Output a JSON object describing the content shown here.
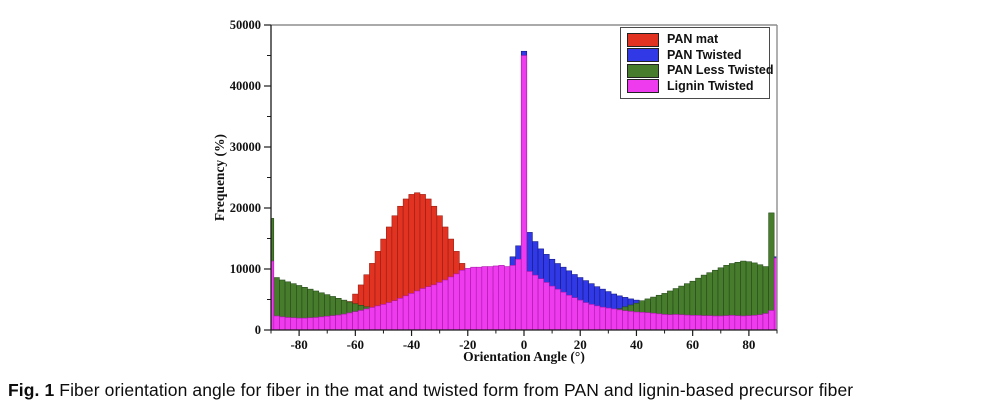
{
  "figure": {
    "caption_prefix": "Fig. 1",
    "caption_text": " Fiber orientation angle for fiber in the mat and twisted form from PAN and lignin-based precursor fiber"
  },
  "chart_data": {
    "type": "bar",
    "subtype": "overlaid-histograms",
    "title": "",
    "xlabel": "Orientation Angle (°)",
    "ylabel": "Frequency (%)",
    "xlim": [
      -90,
      90
    ],
    "ylim": [
      0,
      50000
    ],
    "grid": false,
    "legend_position": "top-right",
    "x_ticks": [
      {
        "v": -80,
        "label": "-80"
      },
      {
        "v": -60,
        "label": "-60"
      },
      {
        "v": -40,
        "label": "-40"
      },
      {
        "v": -20,
        "label": "-20"
      },
      {
        "v": 0,
        "label": "0"
      },
      {
        "v": 20,
        "label": "20"
      },
      {
        "v": 40,
        "label": "40"
      },
      {
        "v": 60,
        "label": "60"
      },
      {
        "v": 80,
        "label": "80"
      }
    ],
    "x_minor_step": 10,
    "y_ticks": [
      {
        "v": 0,
        "label": "0"
      },
      {
        "v": 10000,
        "label": "10000"
      },
      {
        "v": 20000,
        "label": "20000"
      },
      {
        "v": 30000,
        "label": "30000"
      },
      {
        "v": 40000,
        "label": "40000"
      },
      {
        "v": 50000,
        "label": "50000"
      }
    ],
    "y_minor_step": 5000,
    "bin_start": -90,
    "bin_step": 2,
    "series": [
      {
        "name": "PAN mat",
        "color": "#e23222",
        "edge": "#931c10",
        "values": [
          700,
          700,
          710,
          730,
          760,
          810,
          880,
          990,
          1160,
          1410,
          1750,
          2220,
          2830,
          3640,
          4670,
          5890,
          7390,
          9060,
          10920,
          12890,
          14910,
          16890,
          18730,
          20290,
          21480,
          22230,
          22500,
          22230,
          21480,
          20290,
          18730,
          16890,
          14910,
          12890,
          10920,
          9060,
          7390,
          5890,
          4670,
          3640,
          2830,
          2220,
          1750,
          1410,
          1160,
          990,
          880,
          810,
          760,
          730,
          710,
          700,
          690,
          680,
          670,
          660,
          650,
          640,
          630,
          620,
          610,
          600,
          600,
          590,
          590,
          580,
          580,
          570,
          570,
          560,
          560,
          550,
          550,
          540,
          540,
          530,
          530,
          520,
          520,
          510,
          510,
          500,
          500,
          500,
          490,
          490,
          480,
          480,
          470,
          470,
          460
        ]
      },
      {
        "name": "PAN Twisted",
        "color": "#3139e6",
        "edge": "#10167e",
        "values": [
          2100,
          2050,
          2000,
          2000,
          2000,
          2050,
          2050,
          2100,
          2100,
          2150,
          2150,
          2200,
          2200,
          2250,
          2250,
          2300,
          2300,
          2350,
          2400,
          2450,
          2500,
          2550,
          2600,
          2650,
          2700,
          2750,
          2800,
          2900,
          3000,
          3100,
          3200,
          3350,
          3500,
          3700,
          3900,
          4100,
          4400,
          4700,
          5100,
          5500,
          6000,
          6500,
          9500,
          12000,
          13800,
          45700,
          16000,
          14500,
          13300,
          12400,
          11600,
          10900,
          10300,
          9700,
          9100,
          8600,
          8100,
          7600,
          7100,
          6700,
          6300,
          5900,
          5600,
          5350,
          5100,
          4900,
          4700,
          4550,
          4400,
          4250,
          4100,
          4000,
          3900,
          3800,
          3700,
          3600,
          3500,
          3400,
          3350,
          3300,
          3250,
          3200,
          3150,
          3100,
          3050,
          3000,
          3000,
          2950,
          2950,
          2900,
          12000
        ]
      },
      {
        "name": "PAN Less Twisted",
        "color": "#467c2b",
        "edge": "#23461a",
        "values": [
          18300,
          8600,
          8200,
          7900,
          7600,
          7300,
          7000,
          6700,
          6400,
          6100,
          5800,
          5500,
          5200,
          4900,
          4600,
          4300,
          4050,
          3800,
          3600,
          3400,
          3250,
          3100,
          3000,
          2900,
          2800,
          2750,
          2700,
          2650,
          2600,
          2550,
          2500,
          2450,
          2400,
          2350,
          2300,
          2250,
          2200,
          2150,
          2100,
          2050,
          2000,
          2000,
          2000,
          2050,
          2100,
          2200,
          2300,
          2400,
          2500,
          2600,
          2700,
          2750,
          2800,
          2850,
          2900,
          2950,
          3000,
          3050,
          3100,
          3150,
          3250,
          3350,
          3500,
          3800,
          4100,
          4400,
          4800,
          5100,
          5400,
          5700,
          6000,
          6400,
          6800,
          7200,
          7600,
          8000,
          8500,
          9000,
          9400,
          9800,
          10200,
          10600,
          10900,
          11100,
          11300,
          11200,
          11000,
          10700,
          10400,
          19200,
          2600
        ]
      },
      {
        "name": "Lignin Twisted",
        "color": "#ee3bee",
        "edge": "#a816a8",
        "values": [
          11300,
          2300,
          2150,
          2050,
          2000,
          1950,
          1950,
          2000,
          2050,
          2150,
          2250,
          2350,
          2450,
          2600,
          2800,
          3000,
          3200,
          3450,
          3700,
          3950,
          4200,
          4500,
          4800,
          5200,
          5600,
          6000,
          6400,
          6800,
          7100,
          7400,
          7800,
          8200,
          8700,
          9200,
          9800,
          10100,
          10300,
          10300,
          10400,
          10400,
          10500,
          10600,
          10400,
          10600,
          11600,
          45000,
          9600,
          9000,
          8400,
          7800,
          7200,
          6700,
          6200,
          5700,
          5300,
          4900,
          4500,
          4200,
          3950,
          3750,
          3600,
          3450,
          3300,
          3150,
          3050,
          2950,
          2900,
          2850,
          2750,
          2650,
          2550,
          2500,
          2550,
          2500,
          2450,
          2400,
          2400,
          2350,
          2350,
          2300,
          2300,
          2350,
          2400,
          2350,
          2300,
          2350,
          2400,
          2500,
          2700,
          3200,
          11800
        ]
      }
    ]
  }
}
